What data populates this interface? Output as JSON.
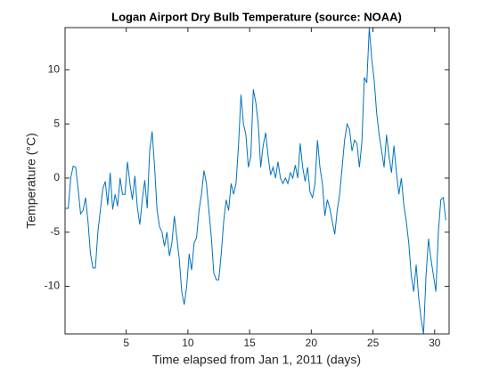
{
  "chart_data": {
    "type": "line",
    "title": "Logan Airport Dry Bulb Temperature (source: NOAA)",
    "xlabel": "Time elapsed from Jan 1, 2011 (days)",
    "ylabel": "Temperature  (°C)",
    "xlim": [
      0.04,
      31.17
    ],
    "ylim": [
      -14.4,
      13.9
    ],
    "xticks": [
      5,
      10,
      15,
      20,
      25,
      30
    ],
    "yticks": [
      -10,
      -5,
      0,
      5,
      10
    ],
    "grid": false,
    "series": [
      {
        "color": "#0072bd",
        "x": [
          0.04,
          0.3,
          0.5,
          0.7,
          0.9,
          1.1,
          1.3,
          1.5,
          1.7,
          1.9,
          2.1,
          2.3,
          2.5,
          2.7,
          2.9,
          3.1,
          3.3,
          3.5,
          3.7,
          3.9,
          4.1,
          4.3,
          4.5,
          4.7,
          4.9,
          5.1,
          5.3,
          5.5,
          5.7,
          5.9,
          6.1,
          6.3,
          6.5,
          6.7,
          6.9,
          7.1,
          7.3,
          7.5,
          7.7,
          7.9,
          8.1,
          8.3,
          8.5,
          8.7,
          8.9,
          9.1,
          9.3,
          9.5,
          9.7,
          9.9,
          10.1,
          10.3,
          10.5,
          10.7,
          10.9,
          11.1,
          11.3,
          11.5,
          11.7,
          11.9,
          12.1,
          12.3,
          12.5,
          12.7,
          12.9,
          13.1,
          13.3,
          13.5,
          13.7,
          13.9,
          14.1,
          14.3,
          14.5,
          14.7,
          14.9,
          15.1,
          15.3,
          15.5,
          15.7,
          15.9,
          16.1,
          16.3,
          16.5,
          16.7,
          16.9,
          17.1,
          17.3,
          17.5,
          17.7,
          17.9,
          18.1,
          18.3,
          18.5,
          18.7,
          18.9,
          19.1,
          19.3,
          19.5,
          19.7,
          19.9,
          20.1,
          20.3,
          20.5,
          20.7,
          20.9,
          21.1,
          21.3,
          21.5,
          21.7,
          21.9,
          22.1,
          22.3,
          22.5,
          22.7,
          22.9,
          23.1,
          23.3,
          23.5,
          23.7,
          23.9,
          24.1,
          24.3,
          24.5,
          24.7,
          24.9,
          25.1,
          25.3,
          25.5,
          25.7,
          25.9,
          26.1,
          26.3,
          26.5,
          26.7,
          26.9,
          27.1,
          27.3,
          27.5,
          27.7,
          27.9,
          28.1,
          28.3,
          28.5,
          28.7,
          28.9,
          29.1,
          29.3,
          29.5,
          29.7,
          29.9,
          30.1,
          30.3,
          30.5,
          30.7,
          30.9
        ],
        "values": [
          -2.8,
          -2.8,
          0,
          1.1,
          1,
          -1,
          -3.3,
          -3,
          -1.8,
          -4,
          -7,
          -8.3,
          -8.3,
          -5,
          -3,
          -1,
          -0.3,
          -2.5,
          0.5,
          -2.9,
          -1.5,
          -2.6,
          0,
          -1.5,
          -1.5,
          1.5,
          -0.5,
          -2,
          0.2,
          -2.7,
          -4.3,
          -2,
          -0.2,
          -2.8,
          2.5,
          4.3,
          1,
          -3,
          -4.5,
          -5,
          -6.3,
          -5,
          -7.2,
          -6,
          -3.5,
          -5.5,
          -7.5,
          -10.5,
          -11.7,
          -10,
          -7,
          -8.5,
          -6,
          -5.5,
          -3,
          -1.5,
          0.7,
          -0.5,
          -3,
          -5.5,
          -8.8,
          -9.4,
          -9.4,
          -7,
          -4,
          -2,
          -3,
          -0.5,
          -1.5,
          -0.5,
          3,
          7.7,
          5,
          4,
          1,
          2,
          8.2,
          7,
          5,
          1,
          3,
          4.2,
          2,
          0.3,
          1,
          0,
          1.5,
          0,
          -0.5,
          0,
          -0.5,
          0.5,
          0,
          1.2,
          0,
          3.2,
          1,
          -0.3,
          1,
          -1.3,
          -1.8,
          -0.5,
          3.5,
          1,
          -0.5,
          -3.5,
          -2,
          -2.8,
          -4,
          -5.2,
          -3,
          -1.5,
          1,
          3.5,
          5,
          4.5,
          2.5,
          3.5,
          3.2,
          1,
          3.3,
          9.3,
          8.8,
          13.9,
          11,
          9,
          6,
          4,
          2.5,
          1,
          4,
          2,
          0.5,
          3,
          0.5,
          -1.5,
          0,
          -2.5,
          -4,
          -6,
          -9,
          -10.5,
          -8,
          -11,
          -13,
          -14.4,
          -9,
          -5.6,
          -7.5,
          -9,
          -10.5,
          -5,
          -2,
          -1.8,
          -3.9
        ]
      }
    ]
  }
}
